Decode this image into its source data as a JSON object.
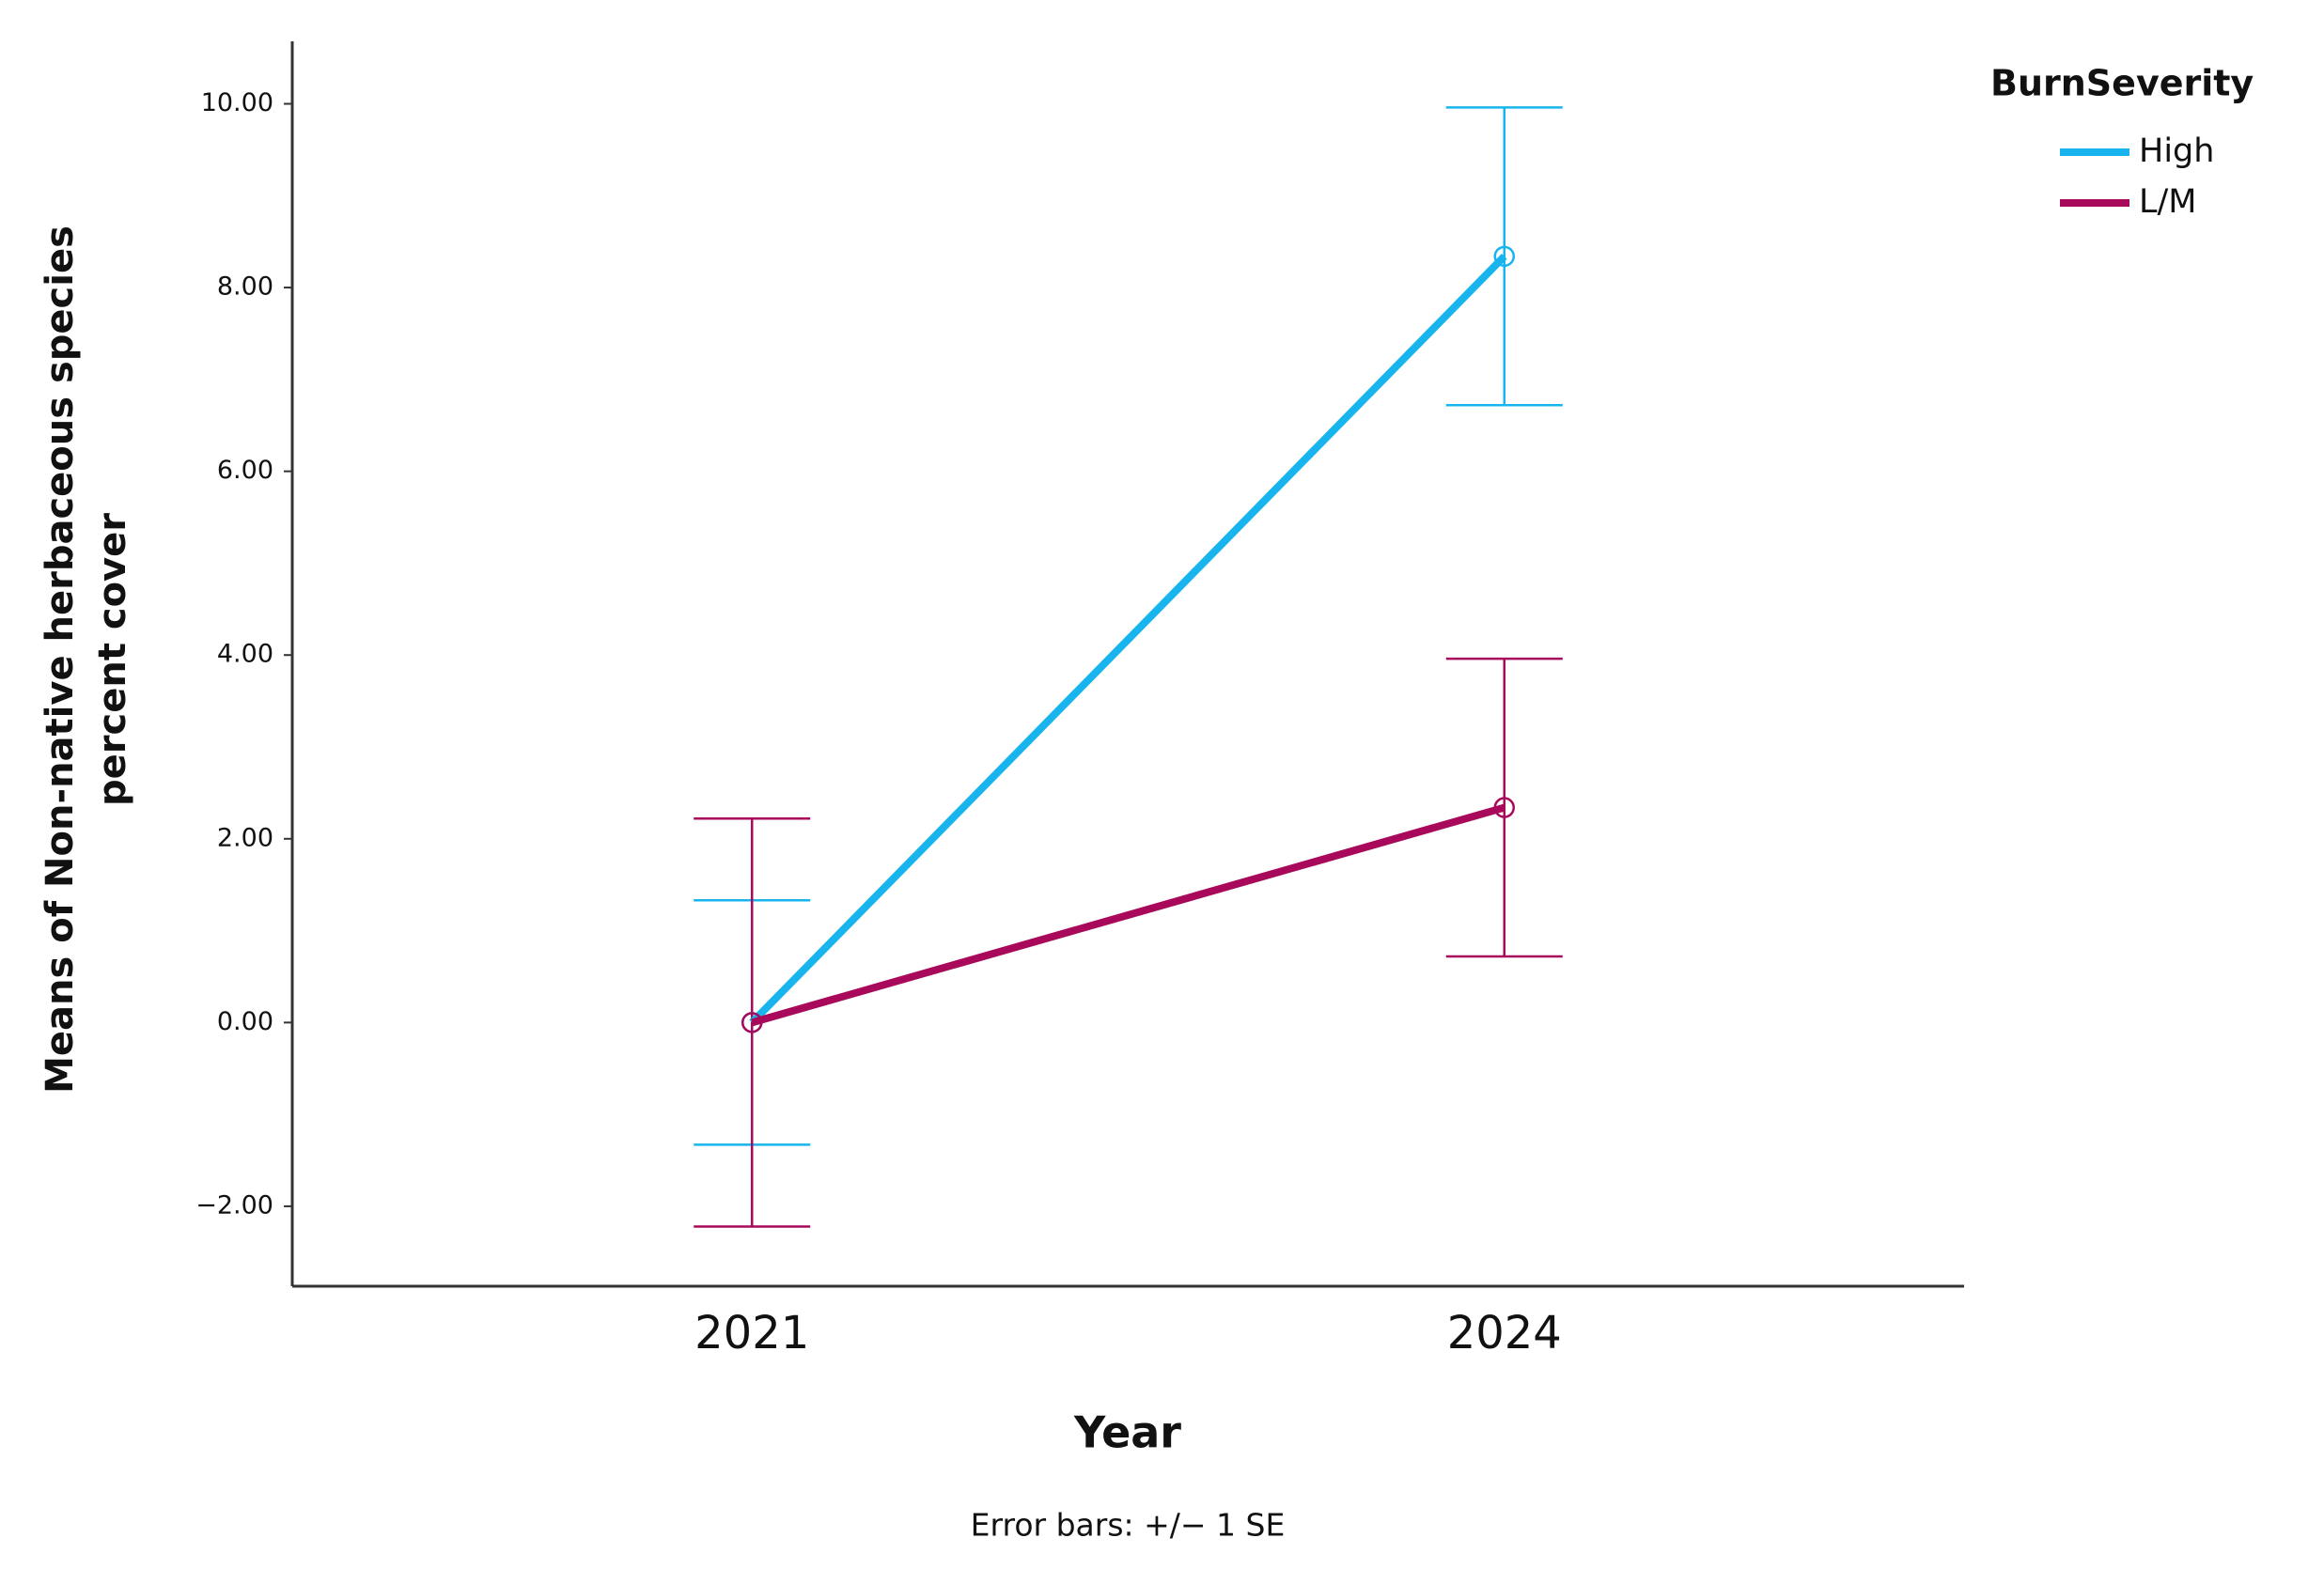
{
  "chart_data": {
    "type": "line",
    "xlabel": "Year",
    "ylabel": [
      "Means of Non-native herbaceous species",
      "percent cover"
    ],
    "categories": [
      "2021",
      "2024"
    ],
    "series": [
      {
        "name": "High",
        "color": "#17b4ee",
        "values": [
          0,
          8.34
        ],
        "errors": [
          1.33,
          1.62
        ]
      },
      {
        "name": "L/M",
        "color": "#a8095b",
        "values": [
          0,
          2.34
        ],
        "errors": [
          2.22,
          1.62
        ]
      }
    ],
    "ylim": [
      -2.87,
      10.68
    ],
    "yticks": [
      {
        "value": -2,
        "label": "−2.00"
      },
      {
        "value": 0,
        "label": "0.00"
      },
      {
        "value": 2,
        "label": "2.00"
      },
      {
        "value": 4,
        "label": "4.00"
      },
      {
        "value": 6,
        "label": "6.00"
      },
      {
        "value": 8,
        "label": "8.00"
      },
      {
        "value": 10,
        "label": "10.00"
      }
    ],
    "legend_title": "BurnSeverity",
    "legend": "top-right",
    "note": "Error bars: +/− 1 SE"
  }
}
